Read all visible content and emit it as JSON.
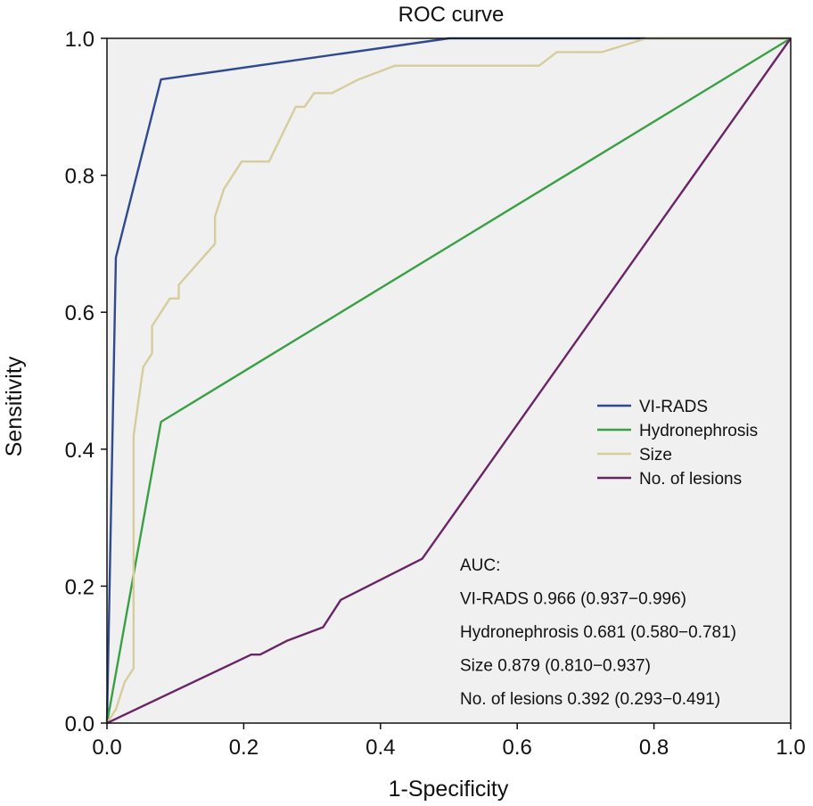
{
  "chart_data": {
    "type": "line",
    "title": "ROC curve",
    "xlabel": "1-Specificity",
    "ylabel": "Sensitivity",
    "xlim": [
      0,
      1
    ],
    "ylim": [
      0,
      1
    ],
    "xticks": [
      "0.0",
      "0.2",
      "0.4",
      "0.6",
      "0.8",
      "1.0"
    ],
    "yticks": [
      "0.0",
      "0.2",
      "0.4",
      "0.6",
      "0.8",
      "1.0"
    ],
    "grid": false,
    "legend_position": "right-middle",
    "series": [
      {
        "name": "VI-RADS",
        "color": "#2f4a8f",
        "points": [
          [
            0,
            0
          ],
          [
            0.013,
            0.68
          ],
          [
            0.079,
            0.94
          ],
          [
            0.5,
            1.0
          ],
          [
            1.0,
            1.0
          ]
        ]
      },
      {
        "name": "Hydronephrosis",
        "color": "#3aa046",
        "points": [
          [
            0,
            0
          ],
          [
            0.079,
            0.44
          ],
          [
            1.0,
            1.0
          ]
        ]
      },
      {
        "name": "Size",
        "color": "#d6cc9c",
        "points": [
          [
            0,
            0
          ],
          [
            0.013,
            0.02
          ],
          [
            0.026,
            0.06
          ],
          [
            0.039,
            0.08
          ],
          [
            0.039,
            0.42
          ],
          [
            0.053,
            0.52
          ],
          [
            0.066,
            0.54
          ],
          [
            0.066,
            0.58
          ],
          [
            0.092,
            0.62
          ],
          [
            0.105,
            0.62
          ],
          [
            0.105,
            0.64
          ],
          [
            0.158,
            0.7
          ],
          [
            0.158,
            0.74
          ],
          [
            0.171,
            0.78
          ],
          [
            0.197,
            0.82
          ],
          [
            0.237,
            0.82
          ],
          [
            0.276,
            0.9
          ],
          [
            0.289,
            0.9
          ],
          [
            0.303,
            0.92
          ],
          [
            0.329,
            0.92
          ],
          [
            0.368,
            0.94
          ],
          [
            0.421,
            0.96
          ],
          [
            0.632,
            0.96
          ],
          [
            0.658,
            0.98
          ],
          [
            0.724,
            0.98
          ],
          [
            0.789,
            1.0
          ],
          [
            1.0,
            1.0
          ]
        ]
      },
      {
        "name": "No. of lesions",
        "color": "#6a2566",
        "points": [
          [
            0,
            0
          ],
          [
            0.211,
            0.1
          ],
          [
            0.224,
            0.1
          ],
          [
            0.263,
            0.12
          ],
          [
            0.316,
            0.14
          ],
          [
            0.342,
            0.18
          ],
          [
            0.461,
            0.24
          ],
          [
            1.0,
            1.0
          ]
        ]
      }
    ],
    "annotations": [
      "AUC:",
      "VI-RADS 0.966 (0.937−0.996)",
      "Hydronephrosis 0.681 (0.580−0.781)",
      "Size 0.879 (0.810−0.937)",
      "No. of lesions 0.392 (0.293−0.491)"
    ],
    "plot_background": "#f0f0f0"
  }
}
